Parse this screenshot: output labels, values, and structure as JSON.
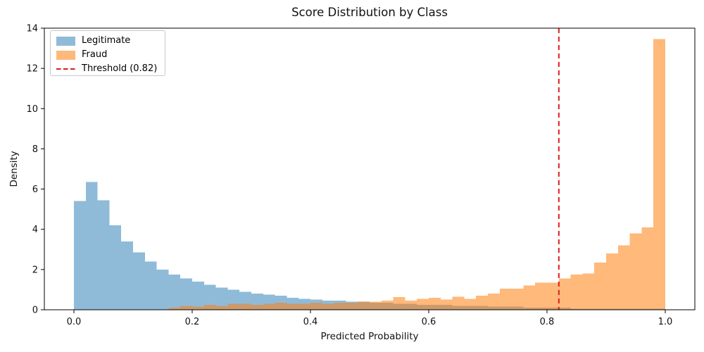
{
  "chart_data": {
    "type": "bar",
    "subtype": "overlapping-histogram",
    "title": "Score Distribution by Class",
    "xlabel": "Predicted Probability",
    "ylabel": "Density",
    "xlim": [
      -0.05,
      1.05
    ],
    "ylim": [
      0,
      14
    ],
    "grid": false,
    "legend_position": "upper left",
    "x_ticks": [
      0.0,
      0.2,
      0.4,
      0.6,
      0.8,
      1.0
    ],
    "x_tick_labels": [
      "0.0",
      "0.2",
      "0.4",
      "0.6",
      "0.8",
      "1.0"
    ],
    "y_ticks": [
      0,
      2,
      4,
      6,
      8,
      10,
      12,
      14
    ],
    "y_tick_labels": [
      "0",
      "2",
      "4",
      "6",
      "8",
      "10",
      "12",
      "14"
    ],
    "bin_start": 0.0,
    "bin_width": 0.02,
    "series": [
      {
        "name": "Legitimate",
        "color": "#1f77b4",
        "fill": "rgba(31,119,180,0.5)",
        "densities": [
          5.4,
          6.35,
          5.45,
          4.2,
          3.4,
          2.85,
          2.4,
          2.0,
          1.75,
          1.55,
          1.4,
          1.25,
          1.1,
          1.0,
          0.9,
          0.8,
          0.75,
          0.7,
          0.6,
          0.55,
          0.5,
          0.45,
          0.45,
          0.4,
          0.4,
          0.35,
          0.35,
          0.3,
          0.3,
          0.25,
          0.25,
          0.25,
          0.2,
          0.2,
          0.2,
          0.15,
          0.15,
          0.15,
          0.1,
          0.1,
          0.1,
          0.1,
          0.05,
          0.05,
          0.05,
          0.05,
          0.05,
          0.05,
          0.05,
          0.05
        ]
      },
      {
        "name": "Fraud",
        "color": "#ff7f0e",
        "fill": "rgba(255,127,14,0.55)",
        "densities": [
          0,
          0,
          0,
          0,
          0,
          0,
          0,
          0,
          0.1,
          0.2,
          0.15,
          0.25,
          0.2,
          0.3,
          0.3,
          0.25,
          0.3,
          0.35,
          0.3,
          0.3,
          0.35,
          0.3,
          0.35,
          0.35,
          0.4,
          0.4,
          0.45,
          0.63,
          0.45,
          0.55,
          0.6,
          0.5,
          0.65,
          0.55,
          0.7,
          0.8,
          1.05,
          1.05,
          1.2,
          1.35,
          1.35,
          1.55,
          1.75,
          1.8,
          2.35,
          2.8,
          3.2,
          3.8,
          4.1,
          13.45
        ]
      }
    ],
    "threshold": {
      "value": 0.82,
      "label": "Threshold (0.82)",
      "color": "#dd1c1c",
      "style": "dashed"
    }
  }
}
